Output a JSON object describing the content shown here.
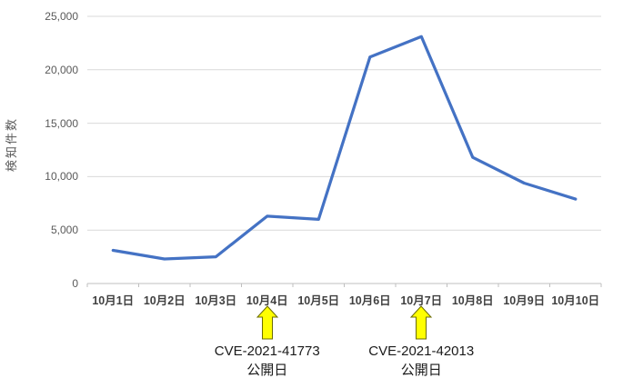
{
  "chart_data": {
    "type": "line",
    "ylabel": "検知件数",
    "xlabel": "",
    "categories": [
      "10月1日",
      "10月2日",
      "10月3日",
      "10月4日",
      "10月5日",
      "10月6日",
      "10月7日",
      "10月8日",
      "10月9日",
      "10月10日"
    ],
    "values": [
      3100,
      2300,
      2500,
      6300,
      6000,
      21200,
      23100,
      11800,
      9400,
      7900
    ],
    "ylim": [
      0,
      25000
    ],
    "yticks": [
      0,
      5000,
      10000,
      15000,
      20000,
      25000
    ],
    "ytick_labels": [
      "0",
      "5,000",
      "10,000",
      "15,000",
      "20,000",
      "25,000"
    ],
    "grid": true,
    "legend": "none",
    "line_color": "#4472C4",
    "gridline_color": "#D9D9D9",
    "axis_color": "#BFBFBF",
    "tick_label_color": "#595959",
    "annotations": [
      {
        "category": "10月4日",
        "lines": [
          "CVE-2021-41773",
          "公開日"
        ],
        "arrow_fill": "#FFFF00",
        "arrow_stroke": "#6B6B00"
      },
      {
        "category": "10月7日",
        "lines": [
          "CVE-2021-42013",
          "公開日"
        ],
        "arrow_fill": "#FFFF00",
        "arrow_stroke": "#6B6B00"
      }
    ]
  }
}
